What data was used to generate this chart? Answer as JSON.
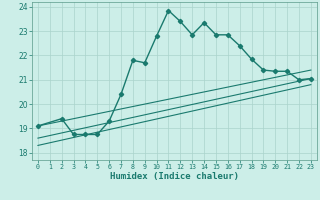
{
  "xlabel": "Humidex (Indice chaleur)",
  "ylabel": "",
  "bg_color": "#cceee8",
  "line_color": "#1a7a6e",
  "grid_color": "#aad4cc",
  "xlim": [
    -0.5,
    23.5
  ],
  "ylim": [
    17.7,
    24.2
  ],
  "xticks": [
    0,
    1,
    2,
    3,
    4,
    5,
    6,
    7,
    8,
    9,
    10,
    11,
    12,
    13,
    14,
    15,
    16,
    17,
    18,
    19,
    20,
    21,
    22,
    23
  ],
  "yticks": [
    18,
    19,
    20,
    21,
    22,
    23,
    24
  ],
  "main_x": [
    0,
    2,
    3,
    4,
    5,
    6,
    7,
    8,
    9,
    10,
    11,
    12,
    13,
    14,
    15,
    16,
    17,
    18,
    19,
    20,
    21,
    22,
    23
  ],
  "main_y": [
    19.1,
    19.4,
    18.75,
    18.75,
    18.75,
    19.3,
    20.4,
    21.8,
    21.7,
    22.8,
    23.85,
    23.4,
    22.85,
    23.35,
    22.85,
    22.85,
    22.4,
    21.85,
    21.4,
    21.35,
    21.35,
    21.0,
    21.05
  ],
  "line2_x": [
    0,
    23
  ],
  "line2_y": [
    19.1,
    21.4
  ],
  "line3_x": [
    0,
    23
  ],
  "line3_y": [
    18.6,
    21.05
  ],
  "line4_x": [
    0,
    23
  ],
  "line4_y": [
    18.3,
    20.8
  ]
}
